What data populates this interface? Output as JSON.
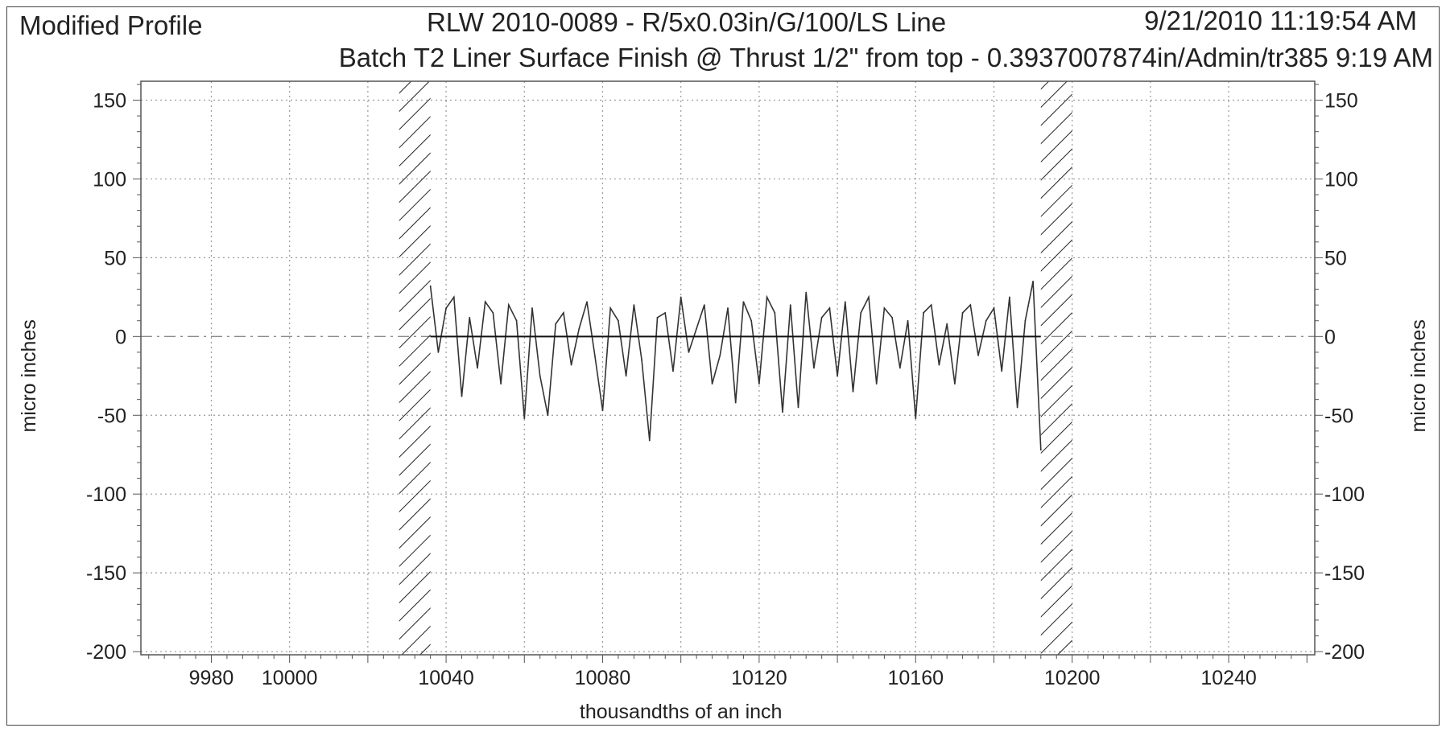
{
  "header": {
    "left_title": "Modified Profile",
    "center_title": "RLW 2010-0089 - R/5x0.03in/G/100/LS Line",
    "timestamp": "9/21/2010 11:19:54 AM",
    "subtitle": "Batch T2 Liner Surface Finish  @  Thrust  1/2\" from top - 0.3937007874in/Admin/tr385   9:19 AM"
  },
  "chart_data": {
    "type": "line",
    "xlabel": "thousandths of an inch",
    "ylabel_left": "micro inches",
    "ylabel_right": "micro inches",
    "xlim": [
      9962,
      10262
    ],
    "ylim": [
      -202,
      162
    ],
    "x_ticks": [
      9980,
      10000,
      10040,
      10080,
      10120,
      10160,
      10200,
      10240
    ],
    "x_gridlines": [
      9980,
      10000,
      10020,
      10040,
      10060,
      10080,
      10100,
      10120,
      10140,
      10160,
      10180,
      10200,
      10220,
      10240
    ],
    "y_ticks": [
      150,
      100,
      50,
      0,
      -50,
      -100,
      -150,
      -200
    ],
    "grid": true,
    "zero_line": 0,
    "excluded_regions": [
      [
        10028,
        10036
      ],
      [
        10192,
        10200
      ]
    ],
    "mean_line": {
      "x_start": 10036,
      "x_end": 10192,
      "y": 0
    },
    "series": [
      {
        "x": [
          10036,
          10038,
          10040,
          10042,
          10044,
          10046,
          10048,
          10050,
          10052,
          10054,
          10056,
          10058,
          10060,
          10062,
          10064,
          10066,
          10068,
          10070,
          10072,
          10074,
          10076,
          10078,
          10080,
          10082,
          10084,
          10086,
          10088,
          10090,
          10092,
          10094,
          10096,
          10098,
          10100,
          10102,
          10104,
          10106,
          10108,
          10110,
          10112,
          10114,
          10116,
          10118,
          10120,
          10122,
          10124,
          10126,
          10128,
          10130,
          10132,
          10134,
          10136,
          10138,
          10140,
          10142,
          10144,
          10146,
          10148,
          10150,
          10152,
          10154,
          10156,
          10158,
          10160,
          10162,
          10164,
          10166,
          10168,
          10170,
          10172,
          10174,
          10176,
          10178,
          10180,
          10182,
          10184,
          10186,
          10188,
          10190,
          10192
        ],
        "y": [
          32,
          -10,
          18,
          25,
          -38,
          12,
          -20,
          22,
          15,
          -30,
          20,
          10,
          -52,
          18,
          -25,
          -50,
          8,
          15,
          -18,
          5,
          22,
          -12,
          -47,
          18,
          10,
          -25,
          20,
          -15,
          -66,
          12,
          15,
          -22,
          25,
          -10,
          5,
          20,
          -30,
          -12,
          18,
          -42,
          22,
          10,
          -30,
          25,
          15,
          -48,
          20,
          -45,
          28,
          -20,
          12,
          18,
          -25,
          22,
          -35,
          15,
          25,
          -30,
          18,
          12,
          -20,
          10,
          -52,
          15,
          20,
          -18,
          8,
          -30,
          15,
          20,
          -12,
          10,
          18,
          -22,
          25,
          -45,
          10,
          35,
          -72
        ]
      }
    ]
  }
}
